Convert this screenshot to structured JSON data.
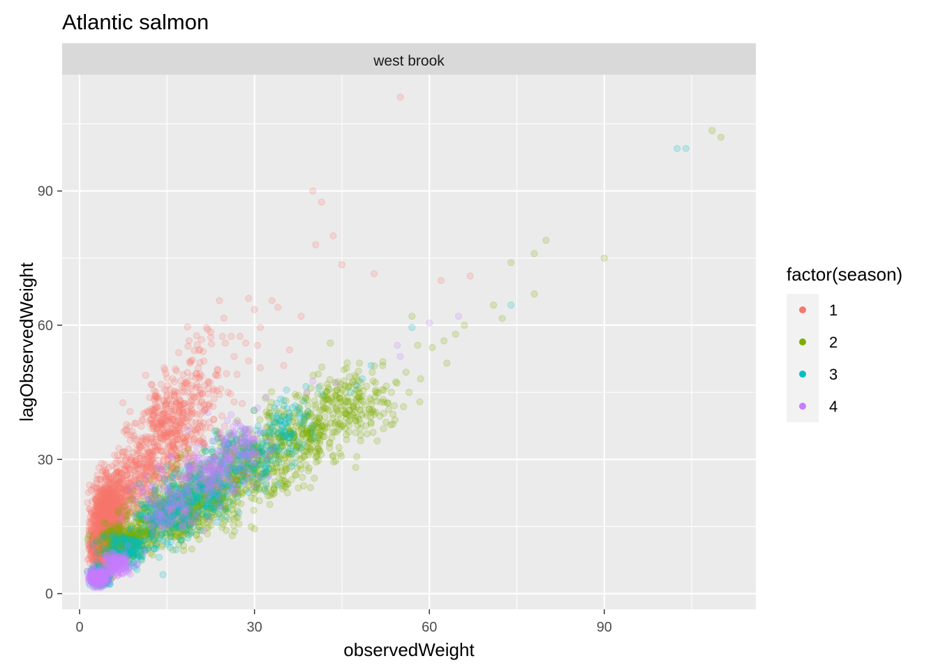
{
  "chart_data": {
    "type": "scatter",
    "title": "Atlantic salmon",
    "facet_label": "west brook",
    "xlabel": "observedWeight",
    "ylabel": "lagObservedWeight",
    "xlim": [
      -3,
      116
    ],
    "ylim": [
      -3.5,
      116
    ],
    "x_ticks": [
      0,
      30,
      60,
      90
    ],
    "x_tick_labels": [
      "0",
      "30",
      "60",
      "90"
    ],
    "y_ticks": [
      0,
      30,
      60,
      90
    ],
    "y_tick_labels": [
      "0",
      "30",
      "60",
      "90"
    ],
    "grid": true,
    "legend": {
      "title": "factor(season)",
      "placement": "right",
      "entries": [
        {
          "label": "1",
          "color": "#F8766D"
        },
        {
          "label": "2",
          "color": "#7CAE00"
        },
        {
          "label": "3",
          "color": "#00BFC4"
        },
        {
          "label": "4",
          "color": "#C77CFF"
        }
      ]
    },
    "point_alpha": 0.2,
    "series": [
      {
        "color": "#F8766D",
        "points": [
          [
            55,
            111
          ],
          [
            40,
            90
          ],
          [
            41.5,
            87.5
          ],
          [
            43.5,
            80
          ],
          [
            40.5,
            78
          ],
          [
            45,
            73.5
          ],
          [
            50.5,
            71.5
          ],
          [
            62,
            70
          ],
          [
            67,
            71
          ],
          [
            24,
            65.5
          ],
          [
            29,
            66
          ],
          [
            33,
            65.5
          ],
          [
            30,
            63.5
          ],
          [
            34,
            64
          ],
          [
            38,
            62
          ],
          [
            31,
            59.5
          ],
          [
            22,
            59
          ],
          [
            22.5,
            58.5
          ],
          [
            24.5,
            57.5
          ],
          [
            26,
            57.5
          ],
          [
            27.5,
            57.5
          ],
          [
            25,
            56
          ],
          [
            28.5,
            56
          ],
          [
            30.5,
            55.5
          ],
          [
            36,
            54.5
          ],
          [
            26.5,
            53
          ],
          [
            29,
            52
          ],
          [
            31,
            50.5
          ],
          [
            35,
            51
          ],
          [
            27,
            49
          ],
          [
            14.5,
            50.5
          ],
          [
            16,
            48
          ],
          [
            18.5,
            47.5
          ],
          [
            20,
            46
          ],
          [
            13.5,
            43.5
          ],
          [
            16,
            43
          ],
          [
            19,
            42
          ],
          [
            21,
            43
          ],
          [
            24,
            44.5
          ],
          [
            12.5,
            40
          ],
          [
            15,
            40
          ],
          [
            20.5,
            38
          ],
          [
            23,
            39
          ]
        ],
        "clusters": [
          {
            "cx": 4.6,
            "cy": 15.5,
            "sx": 1.2,
            "sy": 4.5,
            "n": 1200
          },
          {
            "cx": 6.5,
            "cy": 20,
            "sx": 1.5,
            "sy": 3.5,
            "n": 260
          },
          {
            "cx": 3.2,
            "cy": 10,
            "sx": 0.8,
            "sy": 1.8,
            "n": 320
          },
          {
            "cx": 10,
            "cy": 26,
            "sx": 2.5,
            "sy": 4,
            "n": 200
          },
          {
            "cx": 15,
            "cy": 36,
            "sx": 2.8,
            "sy": 5,
            "n": 380
          },
          {
            "cx": 20,
            "cy": 45,
            "sx": 2.5,
            "sy": 6,
            "n": 140
          }
        ]
      },
      {
        "color": "#7CAE00",
        "points": [
          [
            110,
            102
          ],
          [
            108.5,
            103.5
          ],
          [
            90,
            75
          ],
          [
            80,
            79
          ],
          [
            78,
            76
          ],
          [
            74,
            74
          ],
          [
            78,
            67
          ],
          [
            71,
            64.5
          ],
          [
            72.5,
            61.5
          ],
          [
            66,
            60
          ],
          [
            64.5,
            58
          ],
          [
            62.5,
            56.5
          ],
          [
            58,
            55.5
          ],
          [
            60.5,
            55
          ],
          [
            63,
            51.5
          ],
          [
            57,
            62
          ],
          [
            43,
            56
          ],
          [
            48,
            51.5
          ],
          [
            52,
            51
          ],
          [
            56,
            49.5
          ],
          [
            58.5,
            48
          ],
          [
            56.5,
            45
          ],
          [
            53.5,
            45
          ],
          [
            51,
            43
          ],
          [
            48,
            39
          ],
          [
            50,
            38
          ],
          [
            54,
            42
          ],
          [
            30,
            14.5
          ],
          [
            33.5,
            25
          ],
          [
            20,
            13
          ],
          [
            17,
            11
          ]
        ],
        "clusters": [
          {
            "cx": 8,
            "cy": 12,
            "sx": 2,
            "sy": 2,
            "n": 340
          },
          {
            "cx": 15,
            "cy": 17,
            "sx": 3,
            "sy": 3,
            "n": 380
          },
          {
            "cx": 22,
            "cy": 22.5,
            "sx": 3.5,
            "sy": 3.5,
            "n": 360
          },
          {
            "cx": 30,
            "cy": 29,
            "sx": 4,
            "sy": 3.5,
            "n": 300
          },
          {
            "cx": 38,
            "cy": 35.5,
            "sx": 4,
            "sy": 3.5,
            "n": 260
          },
          {
            "cx": 46,
            "cy": 42.5,
            "sx": 4,
            "sy": 3.5,
            "n": 200
          }
        ]
      },
      {
        "color": "#00BFC4",
        "points": [
          [
            102.5,
            99.5
          ],
          [
            104,
            99.5
          ],
          [
            74,
            64.5
          ],
          [
            57,
            59.5
          ],
          [
            50,
            51
          ],
          [
            47.5,
            46.5
          ],
          [
            41,
            46
          ],
          [
            35.5,
            45.5
          ],
          [
            41.5,
            44.5
          ],
          [
            46.5,
            45
          ],
          [
            48.5,
            48
          ],
          [
            34.5,
            43.5
          ],
          [
            38.5,
            43
          ],
          [
            34,
            40
          ],
          [
            37,
            42
          ]
        ],
        "clusters": [
          {
            "cx": 3.5,
            "cy": 4,
            "sx": 0.8,
            "sy": 1,
            "n": 220
          },
          {
            "cx": 8,
            "cy": 9.5,
            "sx": 2,
            "sy": 2,
            "n": 150
          },
          {
            "cx": 15,
            "cy": 17,
            "sx": 2.5,
            "sy": 3,
            "n": 200
          },
          {
            "cx": 21,
            "cy": 23,
            "sx": 3,
            "sy": 3,
            "n": 220
          },
          {
            "cx": 28,
            "cy": 30.5,
            "sx": 3,
            "sy": 3,
            "n": 160
          },
          {
            "cx": 35,
            "cy": 37,
            "sx": 3,
            "sy": 3,
            "n": 80
          }
        ]
      },
      {
        "color": "#C77CFF",
        "points": [
          [
            60,
            60.5
          ],
          [
            65,
            62
          ],
          [
            54.5,
            55.5
          ],
          [
            55,
            53
          ],
          [
            40,
            47.5
          ],
          [
            44,
            47
          ],
          [
            39,
            45
          ],
          [
            32,
            44
          ],
          [
            30.5,
            41.5
          ],
          [
            26,
            40
          ],
          [
            22,
            40.5
          ],
          [
            18.5,
            36.5
          ]
        ],
        "clusters": [
          {
            "cx": 3,
            "cy": 3.5,
            "sx": 0.9,
            "sy": 1,
            "n": 220
          },
          {
            "cx": 6.5,
            "cy": 6.5,
            "sx": 1.2,
            "sy": 1.2,
            "n": 140
          },
          {
            "cx": 15,
            "cy": 19,
            "sx": 3,
            "sy": 3,
            "n": 110
          },
          {
            "cx": 22,
            "cy": 27,
            "sx": 3,
            "sy": 3,
            "n": 160
          },
          {
            "cx": 28,
            "cy": 33,
            "sx": 2.5,
            "sy": 2.5,
            "n": 90
          }
        ]
      }
    ]
  }
}
